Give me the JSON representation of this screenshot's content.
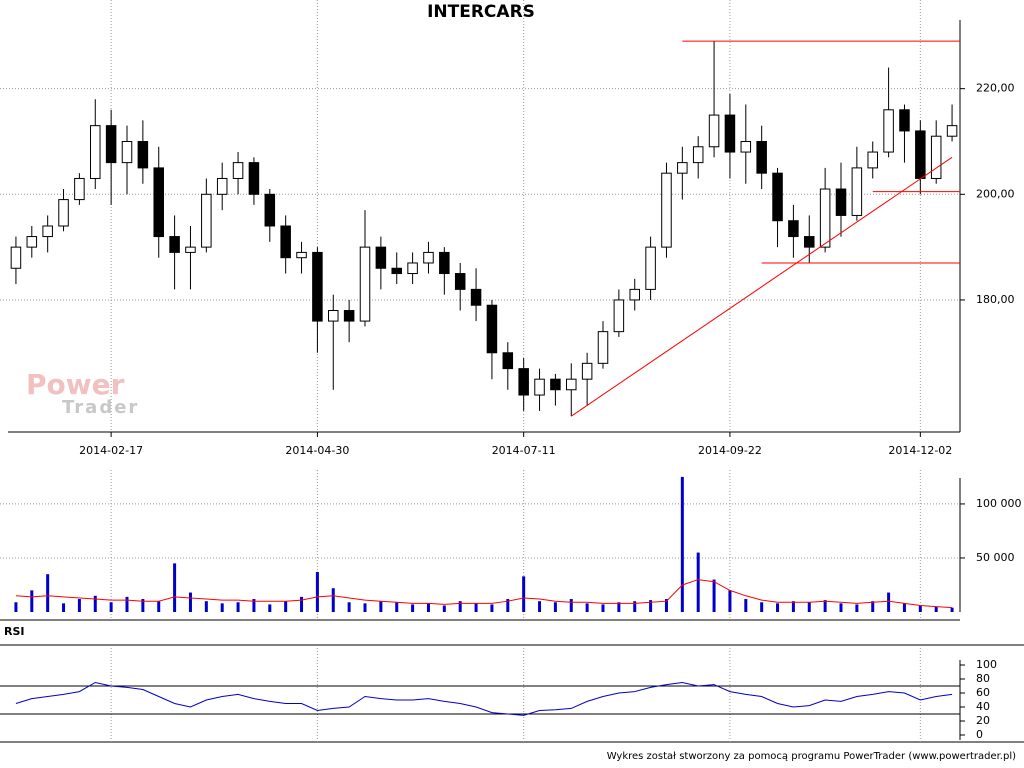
{
  "chart_data": [
    {
      "type": "candlestick",
      "title": "INTERCARS",
      "categories": [
        null,
        null,
        null,
        null,
        null,
        null,
        "2014-02-17",
        null,
        null,
        null,
        null,
        null,
        null,
        null,
        null,
        null,
        null,
        null,
        null,
        "2014-04-30",
        null,
        null,
        null,
        null,
        null,
        null,
        null,
        null,
        null,
        null,
        null,
        null,
        "2014-07-11",
        null,
        null,
        null,
        null,
        null,
        null,
        null,
        null,
        null,
        null,
        null,
        null,
        "2014-09-22",
        null,
        null,
        null,
        null,
        null,
        null,
        null,
        null,
        null,
        null,
        null,
        "2014-12-02",
        null,
        null
      ],
      "open": [
        186,
        190,
        192,
        194,
        199,
        203,
        213,
        206,
        210,
        205,
        192,
        189,
        190,
        200,
        203,
        206,
        200,
        194,
        188,
        189,
        176,
        178,
        176,
        190,
        186,
        185,
        187,
        189,
        185,
        182,
        179,
        170,
        167,
        162,
        165,
        163,
        165,
        168,
        174,
        180,
        182,
        190,
        204,
        206,
        209,
        215,
        208,
        210,
        204,
        195,
        192,
        190,
        201,
        196,
        205,
        208,
        216,
        212,
        203,
        211
      ],
      "high": [
        192,
        194,
        196,
        201,
        204,
        218,
        216,
        213,
        214,
        209,
        196,
        194,
        203,
        206,
        208,
        207,
        201,
        196,
        191,
        190,
        181,
        180,
        197,
        192,
        189,
        189,
        191,
        190,
        187,
        186,
        180,
        172,
        169,
        167,
        166,
        168,
        170,
        176,
        182,
        184,
        192,
        206,
        209,
        211,
        229,
        219,
        217,
        213,
        205,
        198,
        196,
        205,
        206,
        209,
        210,
        224,
        217,
        214,
        214,
        217
      ],
      "low": [
        183,
        188,
        189,
        193,
        198,
        201,
        198,
        200,
        202,
        188,
        182,
        182,
        189,
        197,
        200,
        198,
        191,
        185,
        185,
        170,
        163,
        172,
        175,
        182,
        183,
        183,
        185,
        181,
        178,
        176,
        165,
        163,
        159,
        159,
        160,
        158,
        160,
        167,
        173,
        178,
        180,
        188,
        199,
        203,
        207,
        203,
        202,
        201,
        190,
        188,
        187,
        189,
        192,
        195,
        203,
        207,
        206,
        200,
        202,
        210
      ],
      "close": [
        190,
        192,
        194,
        199,
        203,
        213,
        206,
        210,
        205,
        192,
        189,
        190,
        200,
        203,
        206,
        200,
        194,
        188,
        189,
        176,
        178,
        176,
        190,
        186,
        185,
        187,
        189,
        185,
        182,
        179,
        170,
        167,
        162,
        165,
        163,
        165,
        168,
        174,
        180,
        182,
        190,
        204,
        206,
        209,
        215,
        208,
        210,
        204,
        195,
        192,
        190,
        201,
        196,
        205,
        208,
        216,
        212,
        203,
        211,
        213
      ],
      "up_color": "#ffffff",
      "down_color": "#000000",
      "ylim": [
        155,
        233
      ],
      "yticks": [
        {
          "value": 180,
          "label": "180,00"
        },
        {
          "value": 200,
          "label": "200,00"
        },
        {
          "value": 220,
          "label": "220,00"
        }
      ],
      "grid": true,
      "annotation_color": "#ff0000",
      "hlines": [
        {
          "value": 229,
          "from": 42
        },
        {
          "value": 200.5,
          "from": 54
        },
        {
          "value": 187,
          "from": 47
        }
      ],
      "trendline": {
        "from": [
          35,
          158
        ],
        "to": [
          59,
          207
        ]
      },
      "watermark": [
        "Power",
        "Trader"
      ]
    },
    {
      "type": "bar",
      "series": [
        {
          "type": "bar",
          "color": "#0000cc",
          "values": [
            9000,
            20000,
            35000,
            8000,
            12000,
            15000,
            9000,
            14000,
            12000,
            10000,
            45000,
            18000,
            10000,
            8000,
            9000,
            12000,
            7000,
            10000,
            14000,
            37000,
            22000,
            9000,
            8000,
            10000,
            9000,
            7000,
            8000,
            6000,
            10000,
            8000,
            7000,
            12000,
            33000,
            10000,
            9000,
            12000,
            8000,
            7000,
            9000,
            10000,
            11000,
            12000,
            125000,
            55000,
            30000,
            20000,
            12000,
            9000,
            8000,
            10000,
            9000,
            11000,
            8000,
            7000,
            10000,
            18000,
            8000,
            6000,
            5000,
            4000
          ]
        },
        {
          "type": "line",
          "color": "#ff0000",
          "values": [
            15000,
            14000,
            15000,
            14000,
            13000,
            12000,
            11000,
            11000,
            10000,
            10000,
            14000,
            13000,
            12000,
            11000,
            11000,
            10000,
            10000,
            10000,
            11000,
            14000,
            15000,
            13000,
            11000,
            10000,
            9000,
            8000,
            8000,
            7000,
            8000,
            8000,
            8000,
            10000,
            13000,
            12000,
            10000,
            9000,
            9000,
            8000,
            8000,
            8000,
            9000,
            10000,
            25000,
            30000,
            28000,
            20000,
            15000,
            11000,
            9000,
            9000,
            9000,
            10000,
            9000,
            8000,
            9000,
            10000,
            8000,
            6000,
            5000,
            4000
          ]
        }
      ],
      "ylim": [
        0,
        124000
      ],
      "yticks": [
        {
          "value": 50000,
          "label": "50 000"
        },
        {
          "value": 100000,
          "label": "100 000"
        }
      ],
      "grid": true
    },
    {
      "type": "line",
      "title": "RSI",
      "color": "#0000cc",
      "values": [
        45,
        52,
        55,
        58,
        62,
        75,
        70,
        68,
        65,
        55,
        45,
        40,
        50,
        55,
        58,
        52,
        48,
        45,
        45,
        35,
        38,
        40,
        55,
        52,
        50,
        50,
        52,
        48,
        45,
        40,
        32,
        30,
        28,
        35,
        36,
        38,
        48,
        55,
        60,
        62,
        68,
        72,
        75,
        70,
        72,
        62,
        58,
        55,
        45,
        40,
        42,
        50,
        48,
        55,
        58,
        62,
        60,
        50,
        55,
        58
      ],
      "ylim": [
        0,
        100
      ],
      "yticks": [
        0,
        20,
        40,
        60,
        80,
        100
      ],
      "levels": [
        30,
        70
      ],
      "grid": true
    }
  ],
  "footer": "Wykres został stworzony za pomocą programu PowerTrader (www.powertrader.pl)"
}
